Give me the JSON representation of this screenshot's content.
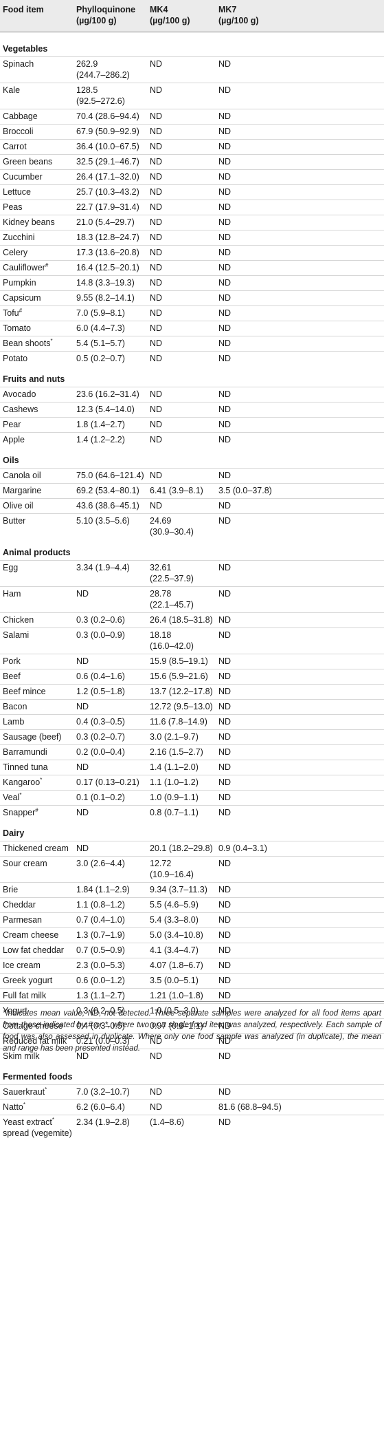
{
  "headers": {
    "food": "Food item",
    "phyllo": [
      "Phylloquinone",
      "(µg/100 g)"
    ],
    "mk4": [
      "MK4",
      "(µg/100 g)"
    ],
    "mk7": [
      "MK7",
      "(µg/100 g)"
    ]
  },
  "sections": [
    {
      "title": "Vegetables",
      "rows": [
        {
          "food": "Spinach",
          "phyllo": [
            "262.9",
            "(244.7–286.2)"
          ],
          "mk4": [
            "ND"
          ],
          "mk7": [
            "ND"
          ]
        },
        {
          "food": "Kale",
          "phyllo": [
            "128.5",
            "(92.5–272.6)"
          ],
          "mk4": [
            "ND"
          ],
          "mk7": [
            "ND"
          ]
        },
        {
          "food": "Cabbage",
          "phyllo": [
            "70.4 (28.6–94.4)"
          ],
          "mk4": [
            "ND"
          ],
          "mk7": [
            "ND"
          ]
        },
        {
          "food": "Broccoli",
          "phyllo": [
            "67.9 (50.9–92.9)"
          ],
          "mk4": [
            "ND"
          ],
          "mk7": [
            "ND"
          ]
        },
        {
          "food": "Carrot",
          "phyllo": [
            "36.4 (10.0–67.5)"
          ],
          "mk4": [
            "ND"
          ],
          "mk7": [
            "ND"
          ]
        },
        {
          "food": "Green beans",
          "phyllo": [
            "32.5 (29.1–46.7)"
          ],
          "mk4": [
            "ND"
          ],
          "mk7": [
            "ND"
          ]
        },
        {
          "food": "Cucumber",
          "phyllo": [
            "26.4 (17.1–32.0)"
          ],
          "mk4": [
            "ND"
          ],
          "mk7": [
            "ND"
          ]
        },
        {
          "food": "Lettuce",
          "phyllo": [
            "25.7 (10.3–43.2)"
          ],
          "mk4": [
            "ND"
          ],
          "mk7": [
            "ND"
          ]
        },
        {
          "food": "Peas",
          "phyllo": [
            "22.7 (17.9–31.4)"
          ],
          "mk4": [
            "ND"
          ],
          "mk7": [
            "ND"
          ]
        },
        {
          "food": "Kidney beans",
          "phyllo": [
            "21.0 (5.4–29.7)"
          ],
          "mk4": [
            "ND"
          ],
          "mk7": [
            "ND"
          ]
        },
        {
          "food": "Zucchini",
          "phyllo": [
            "18.3 (12.8–24.7)"
          ],
          "mk4": [
            "ND"
          ],
          "mk7": [
            "ND"
          ]
        },
        {
          "food": "Celery",
          "phyllo": [
            "17.3 (13.6–20.8)"
          ],
          "mk4": [
            "ND"
          ],
          "mk7": [
            "ND"
          ]
        },
        {
          "food": "Cauliflower",
          "sup": "#",
          "phyllo": [
            "16.4 (12.5–20.1)"
          ],
          "mk4": [
            "ND"
          ],
          "mk7": [
            "ND"
          ]
        },
        {
          "food": "Pumpkin",
          "phyllo": [
            "14.8 (3.3–19.3)"
          ],
          "mk4": [
            "ND"
          ],
          "mk7": [
            "ND"
          ]
        },
        {
          "food": "Capsicum",
          "phyllo": [
            "9.55 (8.2–14.1)"
          ],
          "mk4": [
            "ND"
          ],
          "mk7": [
            "ND"
          ]
        },
        {
          "food": "Tofu",
          "sup": "#",
          "phyllo": [
            "7.0 (5.9–8.1)"
          ],
          "mk4": [
            "ND"
          ],
          "mk7": [
            "ND"
          ]
        },
        {
          "food": "Tomato",
          "phyllo": [
            "6.0 (4.4–7.3)"
          ],
          "mk4": [
            "ND"
          ],
          "mk7": [
            "ND"
          ]
        },
        {
          "food": "Bean shoots",
          "sup": "*",
          "phyllo": [
            "5.4 (5.1–5.7)"
          ],
          "mk4": [
            "ND"
          ],
          "mk7": [
            "ND"
          ]
        },
        {
          "food": "Potato",
          "phyllo": [
            "0.5 (0.2–0.7)"
          ],
          "mk4": [
            "ND"
          ],
          "mk7": [
            "ND"
          ]
        }
      ]
    },
    {
      "title": "Fruits and nuts",
      "rows": [
        {
          "food": "Avocado",
          "phyllo": [
            "23.6 (16.2–31.4)"
          ],
          "mk4": [
            "ND"
          ],
          "mk7": [
            "ND"
          ]
        },
        {
          "food": "Cashews",
          "phyllo": [
            "12.3 (5.4–14.0)"
          ],
          "mk4": [
            "ND"
          ],
          "mk7": [
            "ND"
          ]
        },
        {
          "food": "Pear",
          "phyllo": [
            "1.8 (1.4–2.7)"
          ],
          "mk4": [
            "ND"
          ],
          "mk7": [
            "ND"
          ]
        },
        {
          "food": "Apple",
          "phyllo": [
            "1.4 (1.2–2.2)"
          ],
          "mk4": [
            "ND"
          ],
          "mk7": [
            "ND"
          ]
        }
      ]
    },
    {
      "title": "Oils",
      "rows": [
        {
          "food": "Canola oil",
          "phyllo": [
            "75.0 (64.6–121.4)"
          ],
          "mk4": [
            "ND"
          ],
          "mk7": [
            "ND"
          ]
        },
        {
          "food": "Margarine",
          "phyllo": [
            "69.2 (53.4–80.1)"
          ],
          "mk4": [
            "6.41 (3.9–8.1)"
          ],
          "mk7": [
            "3.5 (0.0–37.8)"
          ]
        },
        {
          "food": "Olive oil",
          "phyllo": [
            "43.6 (38.6–45.1)"
          ],
          "mk4": [
            "ND"
          ],
          "mk7": [
            "ND"
          ]
        },
        {
          "food": "Butter",
          "phyllo": [
            "5.10 (3.5–5.6)"
          ],
          "mk4": [
            "24.69",
            "(30.9–30.4)"
          ],
          "mk7": [
            "ND"
          ]
        }
      ]
    },
    {
      "title": "Animal products",
      "rows": [
        {
          "food": "Egg",
          "phyllo": [
            "3.34 (1.9–4.4)"
          ],
          "mk4": [
            "32.61",
            "(22.5–37.9)"
          ],
          "mk7": [
            "ND"
          ]
        },
        {
          "food": "Ham",
          "phyllo": [
            "ND"
          ],
          "mk4": [
            "28.78",
            "(22.1–45.7)"
          ],
          "mk7": [
            "ND"
          ]
        },
        {
          "food": "Chicken",
          "phyllo": [
            "0.3 (0.2–0.6)"
          ],
          "mk4": [
            "26.4 (18.5–31.8)"
          ],
          "mk7": [
            "ND"
          ]
        },
        {
          "food": "Salami",
          "phyllo": [
            "0.3 (0.0–0.9)"
          ],
          "mk4": [
            "18.18",
            "(16.0–42.0)"
          ],
          "mk7": [
            "ND"
          ]
        },
        {
          "food": "Pork",
          "phyllo": [
            "ND"
          ],
          "mk4": [
            "15.9 (8.5–19.1)"
          ],
          "mk7": [
            "ND"
          ]
        },
        {
          "food": "Beef",
          "phyllo": [
            "0.6 (0.4–1.6)"
          ],
          "mk4": [
            "15.6 (5.9–21.6)"
          ],
          "mk7": [
            "ND"
          ]
        },
        {
          "food": "Beef mince",
          "phyllo": [
            "1.2 (0.5–1.8)"
          ],
          "mk4": [
            "13.7 (12.2–17.8)"
          ],
          "mk7": [
            "ND"
          ]
        },
        {
          "food": "Bacon",
          "phyllo": [
            "ND"
          ],
          "mk4": [
            "12.72 (9.5–13.0)"
          ],
          "mk7": [
            "ND"
          ]
        },
        {
          "food": "Lamb",
          "phyllo": [
            "0.4 (0.3–0.5)"
          ],
          "mk4": [
            "11.6 (7.8–14.9)"
          ],
          "mk7": [
            "ND"
          ]
        },
        {
          "food": "Sausage (beef)",
          "phyllo": [
            "0.3 (0.2–0.7)"
          ],
          "mk4": [
            "3.0 (2.1–9.7)"
          ],
          "mk7": [
            "ND"
          ]
        },
        {
          "food": "Barramundi",
          "phyllo": [
            "0.2 (0.0–0.4)"
          ],
          "mk4": [
            "2.16 (1.5–2.7)"
          ],
          "mk7": [
            "ND"
          ]
        },
        {
          "food": "Tinned tuna",
          "phyllo": [
            "ND"
          ],
          "mk4": [
            "1.4 (1.1–2.0)"
          ],
          "mk7": [
            "ND"
          ]
        },
        {
          "food": "Kangaroo",
          "sup": "*",
          "phyllo": [
            "0.17 (0.13–0.21)"
          ],
          "mk4": [
            "1.1 (1.0–1.2)"
          ],
          "mk7": [
            "ND"
          ]
        },
        {
          "food": "Veal",
          "sup": "*",
          "phyllo": [
            "0.1 (0.1–0.2)"
          ],
          "mk4": [
            "1.0 (0.9–1.1)"
          ],
          "mk7": [
            "ND"
          ]
        },
        {
          "food": "Snapper",
          "sup": "#",
          "phyllo": [
            "ND"
          ],
          "mk4": [
            "0.8 (0.7–1.1)"
          ],
          "mk7": [
            "ND"
          ]
        }
      ]
    },
    {
      "title": "Dairy",
      "rows": [
        {
          "food": "Thickened cream",
          "phyllo": [
            "ND"
          ],
          "mk4": [
            "20.1 (18.2–29.8)"
          ],
          "mk7": [
            "0.9 (0.4–3.1)"
          ]
        },
        {
          "food": "Sour cream",
          "phyllo": [
            "3.0 (2.6–4.4)"
          ],
          "mk4": [
            "12.72",
            "(10.9–16.4)"
          ],
          "mk7": [
            "ND"
          ]
        },
        {
          "food": "Brie",
          "phyllo": [
            "1.84 (1.1–2.9)"
          ],
          "mk4": [
            "9.34 (3.7–11.3)"
          ],
          "mk7": [
            "ND"
          ]
        },
        {
          "food": "Cheddar",
          "phyllo": [
            "1.1 (0.8–1.2)"
          ],
          "mk4": [
            "5.5 (4.6–5.9)"
          ],
          "mk7": [
            "ND"
          ]
        },
        {
          "food": "Parmesan",
          "phyllo": [
            "0.7 (0.4–1.0)"
          ],
          "mk4": [
            "5.4 (3.3–8.0)"
          ],
          "mk7": [
            "ND"
          ]
        },
        {
          "food": "Cream cheese",
          "phyllo": [
            "1.3 (0.7–1.9)"
          ],
          "mk4": [
            "5.0 (3.4–10.8)"
          ],
          "mk7": [
            "ND"
          ]
        },
        {
          "food": "Low fat cheddar",
          "phyllo": [
            "0.7 (0.5–0.9)"
          ],
          "mk4": [
            "4.1 (3.4–4.7)"
          ],
          "mk7": [
            "ND"
          ]
        },
        {
          "food": "Ice cream",
          "phyllo": [
            "2.3 (0.0–5.3)"
          ],
          "mk4": [
            "4.07 (1.8–6.7)"
          ],
          "mk7": [
            "ND"
          ]
        },
        {
          "food": "Greek yogurt",
          "phyllo": [
            "0.6 (0.0–1.2)"
          ],
          "mk4": [
            "3.5 (0.0–5.1)"
          ],
          "mk7": [
            "ND"
          ]
        },
        {
          "food": "Full fat milk",
          "phyllo": [
            "1.3 (1.1–2.7)"
          ],
          "mk4": [
            "1.21 (1.0–1.8)"
          ],
          "mk7": [
            "ND"
          ]
        },
        {
          "food": "Yogurt",
          "phyllo": [
            "0.3 (0.2–0.5)"
          ],
          "mk4": [
            "1.0 (0.5–3.0)"
          ],
          "mk7": [
            "ND"
          ]
        },
        {
          "food": "Cottage cheese",
          "phyllo": [
            "0.4 (0.3–0.5)"
          ],
          "mk4": [
            "0.97 (0.6–1.1)"
          ],
          "mk7": [
            "ND"
          ]
        },
        {
          "food": "Reduced fat milk",
          "phyllo": [
            "0.21 (0.0–0.3)"
          ],
          "mk4": [
            "ND"
          ],
          "mk7": [
            "ND"
          ]
        },
        {
          "food": "Skim milk",
          "phyllo": [
            "ND"
          ],
          "mk4": [
            "ND"
          ],
          "mk7": [
            "ND"
          ]
        }
      ]
    },
    {
      "title": "Fermented foods",
      "rows": [
        {
          "food": "Sauerkraut",
          "sup": "*",
          "phyllo": [
            "7.0 (3.2–10.7)"
          ],
          "mk4": [
            "ND"
          ],
          "mk7": [
            "ND"
          ]
        },
        {
          "food": "Natto",
          "sup": "*",
          "phyllo": [
            "6.2 (6.0–6.4)"
          ],
          "mk4": [
            "ND"
          ],
          "mk7": [
            "81.6 (68.8–94.5)"
          ]
        },
        {
          "food": "Yeast extract",
          "sup": "*",
          "food2": "spread (vegemite)",
          "phyllo": [
            "2.34 (1.9–2.8)"
          ],
          "mk4": [
            "(1.4–8.6)"
          ],
          "mk7": [
            "ND"
          ]
        }
      ]
    }
  ],
  "footnote": "*Indicates mean value; ND, not detected. Three separate samples were analyzed for all food items apart from those indicated by # or *, where two or a single food item was analyzed, respectively. Each sample of food was also assessed in duplicate. Where only one food sample was analyzed (in duplicate), the mean and range has been presented instead."
}
